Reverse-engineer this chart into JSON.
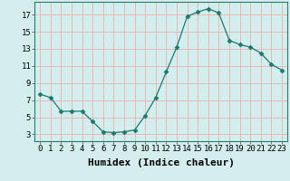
{
  "x": [
    0,
    1,
    2,
    3,
    4,
    5,
    6,
    7,
    8,
    9,
    10,
    11,
    12,
    13,
    14,
    15,
    16,
    17,
    18,
    19,
    20,
    21,
    22,
    23
  ],
  "y": [
    7.7,
    7.3,
    5.7,
    5.7,
    5.7,
    4.5,
    3.3,
    3.2,
    3.3,
    3.5,
    5.2,
    7.3,
    10.3,
    13.2,
    16.8,
    17.3,
    17.7,
    17.2,
    14.0,
    13.5,
    13.2,
    12.5,
    11.2,
    10.5
  ],
  "line_color": "#1a7a6e",
  "marker": "D",
  "marker_size": 2.5,
  "bg_color": "#d4eeed",
  "grid_color": "#e8b8b8",
  "xlabel": "Humidex (Indice chaleur)",
  "xlabel_fontsize": 8,
  "ylabel_ticks": [
    3,
    5,
    7,
    9,
    11,
    13,
    15,
    17
  ],
  "xlim": [
    -0.5,
    23.5
  ],
  "ylim": [
    2.2,
    18.5
  ],
  "xtick_labels": [
    "0",
    "1",
    "2",
    "3",
    "4",
    "5",
    "6",
    "7",
    "8",
    "9",
    "10",
    "11",
    "12",
    "13",
    "14",
    "15",
    "16",
    "17",
    "18",
    "19",
    "20",
    "21",
    "22",
    "23"
  ],
  "tick_fontsize": 6.5
}
